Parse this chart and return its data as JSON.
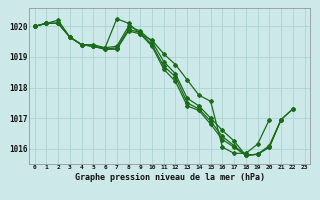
{
  "title": "Graphe pression niveau de la mer (hPa)",
  "bg_color": "#cce8e8",
  "grid_color": "#aad4d4",
  "line_color": "#1a6b1a",
  "x_labels": [
    "0",
    "1",
    "2",
    "3",
    "4",
    "5",
    "6",
    "7",
    "8",
    "9",
    "10",
    "11",
    "12",
    "13",
    "14",
    "15",
    "16",
    "17",
    "18",
    "19",
    "20",
    "21",
    "22",
    "23"
  ],
  "ylim": [
    1015.5,
    1020.6
  ],
  "yticks": [
    1016,
    1017,
    1018,
    1019,
    1020
  ],
  "s1": [
    1020.0,
    1020.1,
    1020.1,
    1019.65,
    1019.4,
    1019.4,
    1019.3,
    1020.25,
    1020.1,
    1019.75,
    1019.55,
    1019.1,
    1018.75,
    1018.25,
    1017.75,
    1017.55,
    1016.05,
    1015.85,
    1015.85,
    1016.15,
    1016.95,
    null,
    null,
    null
  ],
  "s2": [
    1020.0,
    1020.1,
    1020.1,
    1019.65,
    1019.4,
    1019.35,
    1019.3,
    1019.35,
    1020.0,
    1019.85,
    1019.5,
    1018.85,
    1018.45,
    1017.65,
    1017.4,
    1017.0,
    1016.6,
    1016.25,
    1015.78,
    1015.82,
    1016.05,
    1016.95,
    null,
    null
  ],
  "s3": [
    1020.0,
    1020.1,
    1020.1,
    1019.65,
    1019.4,
    1019.35,
    1019.25,
    1019.3,
    1019.9,
    1019.8,
    1019.4,
    1018.7,
    1018.35,
    1017.5,
    1017.3,
    1016.9,
    1016.4,
    1016.1,
    1015.78,
    1015.82,
    1016.05,
    1016.95,
    1017.3,
    null
  ],
  "s4": [
    1020.0,
    1020.1,
    1020.2,
    1019.65,
    1019.4,
    1019.35,
    1019.25,
    1019.25,
    1019.85,
    1019.75,
    1019.35,
    1018.6,
    1018.2,
    1017.4,
    1017.25,
    1016.8,
    1016.3,
    1016.05,
    1015.78,
    1015.82,
    1016.1,
    1016.95,
    1017.3,
    null
  ]
}
